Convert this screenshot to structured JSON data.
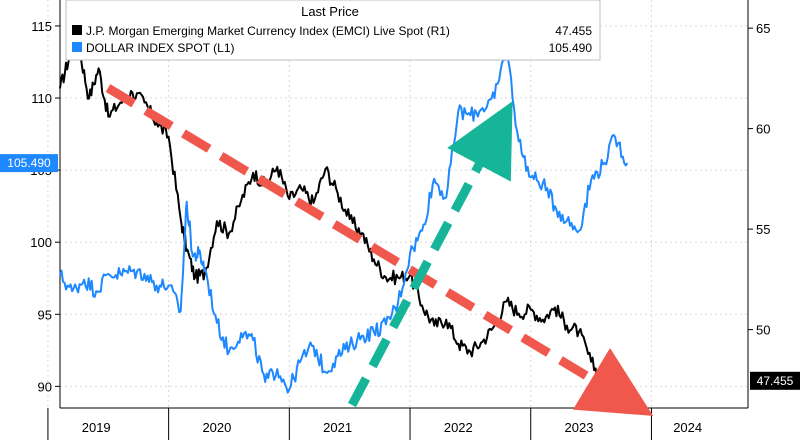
{
  "chart_data": {
    "type": "line",
    "legend": {
      "title": "Last Price",
      "placement": "top-center",
      "entries": [
        {
          "name": "J.P. Morgan Emerging Market Currency Index (EMCI) Live Spot  (R1)",
          "value": "47.455",
          "color": "#000000"
        },
        {
          "name": "DOLLAR INDEX SPOT  (L1)",
          "value": "105.490",
          "color": "#1e88ff"
        }
      ]
    },
    "x_axis": {
      "range": [
        2019.0,
        2024.7
      ],
      "tick_labels": [
        "2019",
        "2020",
        "2021",
        "2022",
        "2023",
        "2024"
      ],
      "tick_values": [
        2019.3,
        2020.3,
        2021.3,
        2022.3,
        2023.3,
        2024.2
      ],
      "dividers": [
        2018.9,
        2019.9,
        2020.9,
        2021.9,
        2022.9,
        2023.9
      ]
    },
    "left_axis": {
      "range": [
        88.5,
        116.8
      ],
      "ticks": [
        90,
        95,
        100,
        105,
        110,
        115
      ],
      "last_value_label": "105.490",
      "last_value": 105.49
    },
    "right_axis": {
      "range": [
        46.1,
        66.4
      ],
      "ticks": [
        50,
        55,
        60,
        65
      ],
      "last_value_label": "47.455",
      "last_value": 47.455
    },
    "grid": true,
    "series": [
      {
        "name": "J.P. Morgan Emerging Market Currency Index (EMCI) Live Spot  (R1)",
        "axis": "right",
        "color": "#000000",
        "x": [
          2019.0,
          2019.08,
          2019.16,
          2019.24,
          2019.32,
          2019.4,
          2019.5,
          2019.6,
          2019.7,
          2019.8,
          2019.9,
          2020.0,
          2020.05,
          2020.12,
          2020.2,
          2020.3,
          2020.4,
          2020.5,
          2020.6,
          2020.7,
          2020.8,
          2020.9,
          2021.0,
          2021.1,
          2021.2,
          2021.3,
          2021.4,
          2021.5,
          2021.6,
          2021.7,
          2021.8,
          2021.9,
          2022.0,
          2022.1,
          2022.2,
          2022.3,
          2022.4,
          2022.5,
          2022.6,
          2022.7,
          2022.8,
          2022.9,
          2023.0,
          2023.1,
          2023.2,
          2023.3,
          2023.4,
          2023.5,
          2023.6,
          2023.7
        ],
        "y": [
          62.0,
          63.6,
          64.0,
          61.5,
          63.0,
          60.6,
          61.3,
          61.8,
          61.3,
          60.3,
          59.6,
          55.5,
          54.0,
          52.6,
          52.8,
          55.4,
          54.8,
          56.4,
          57.8,
          57.2,
          58.1,
          56.5,
          57.0,
          56.3,
          58.0,
          56.8,
          55.5,
          54.8,
          53.5,
          52.6,
          52.6,
          52.7,
          51.2,
          50.2,
          50.5,
          49.3,
          48.9,
          49.4,
          50.2,
          51.4,
          50.8,
          51.0,
          50.5,
          51.1,
          50.2,
          49.9,
          48.4,
          47.4,
          46.7,
          47.5
        ]
      },
      {
        "name": "DOLLAR INDEX SPOT  (L1)",
        "axis": "left",
        "color": "#1e88ff",
        "x": [
          2019.0,
          2019.1,
          2019.2,
          2019.3,
          2019.4,
          2019.5,
          2019.6,
          2019.7,
          2019.8,
          2019.9,
          2020.0,
          2020.05,
          2020.1,
          2020.15,
          2020.2,
          2020.3,
          2020.4,
          2020.5,
          2020.6,
          2020.7,
          2020.8,
          2020.9,
          2021.0,
          2021.1,
          2021.2,
          2021.3,
          2021.4,
          2021.5,
          2021.6,
          2021.7,
          2021.8,
          2021.9,
          2022.0,
          2022.1,
          2022.2,
          2022.3,
          2022.4,
          2022.5,
          2022.6,
          2022.7,
          2022.8,
          2022.9,
          2023.0,
          2023.1,
          2023.2,
          2023.3,
          2023.4,
          2023.5,
          2023.6,
          2023.7
        ],
        "y": [
          97.7,
          96.6,
          97.4,
          96.6,
          97.8,
          97.8,
          98.0,
          97.8,
          97.0,
          97.0,
          95.2,
          102.8,
          99.0,
          99.2,
          98.2,
          94.4,
          92.4,
          93.7,
          93.2,
          90.3,
          91.2,
          89.8,
          91.9,
          92.8,
          91.0,
          92.1,
          92.8,
          93.5,
          93.8,
          94.3,
          95.8,
          99.2,
          100.8,
          104.4,
          103.1,
          109.1,
          108.8,
          109.3,
          110.0,
          113.5,
          107.0,
          104.5,
          104.1,
          102.5,
          101.5,
          100.8,
          104.3,
          105.4,
          107.3,
          105.49
        ]
      }
    ]
  }
}
